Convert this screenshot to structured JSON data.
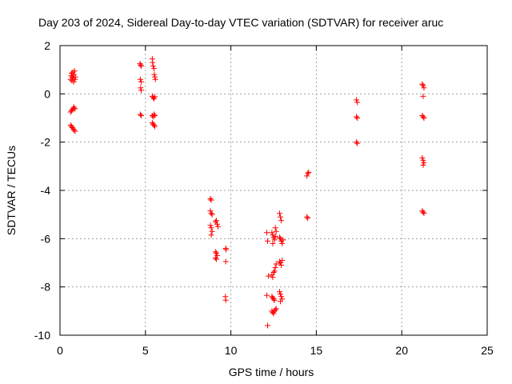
{
  "chart_data": {
    "type": "scatter",
    "title": "Day 203 of 2024, Sidereal Day-to-day VTEC variation (SDTVAR) for receiver aruc",
    "xlabel": "GPS time / hours",
    "ylabel": "SDTVAR / TECUs",
    "xlim": [
      0,
      25
    ],
    "ylim": [
      -10,
      2
    ],
    "xticks": [
      0,
      5,
      10,
      15,
      20,
      25
    ],
    "yticks": [
      -10,
      -8,
      -6,
      -4,
      -2,
      0,
      2
    ],
    "grid": true,
    "marker": "+",
    "color": "#ff0000",
    "series": [
      {
        "name": "SDTVAR",
        "points": [
          [
            0.62,
            0.6
          ],
          [
            0.65,
            0.75
          ],
          [
            0.68,
            0.85
          ],
          [
            0.7,
            0.55
          ],
          [
            0.72,
            0.7
          ],
          [
            0.75,
            0.9
          ],
          [
            0.78,
            0.65
          ],
          [
            0.8,
            0.5
          ],
          [
            0.82,
            0.8
          ],
          [
            0.85,
            0.95
          ],
          [
            0.88,
            0.6
          ],
          [
            0.9,
            0.7
          ],
          [
            0.62,
            -0.75
          ],
          [
            0.68,
            -0.7
          ],
          [
            0.72,
            -0.65
          ],
          [
            0.78,
            -0.6
          ],
          [
            0.82,
            -0.55
          ],
          [
            0.88,
            -0.62
          ],
          [
            0.62,
            -1.3
          ],
          [
            0.68,
            -1.35
          ],
          [
            0.72,
            -1.4
          ],
          [
            0.78,
            -1.45
          ],
          [
            0.82,
            -1.5
          ],
          [
            0.88,
            -1.55
          ],
          [
            4.68,
            1.25
          ],
          [
            4.72,
            1.2
          ],
          [
            4.75,
            1.15
          ],
          [
            4.7,
            0.6
          ],
          [
            4.75,
            0.5
          ],
          [
            4.72,
            0.25
          ],
          [
            4.75,
            0.15
          ],
          [
            4.7,
            -0.85
          ],
          [
            4.75,
            -0.9
          ],
          [
            5.4,
            1.45
          ],
          [
            5.42,
            1.3
          ],
          [
            5.45,
            1.15
          ],
          [
            5.5,
            1.05
          ],
          [
            5.52,
            0.8
          ],
          [
            5.55,
            0.7
          ],
          [
            5.58,
            0.6
          ],
          [
            5.4,
            -0.1
          ],
          [
            5.45,
            -0.15
          ],
          [
            5.5,
            -0.2
          ],
          [
            5.55,
            -0.12
          ],
          [
            5.4,
            -0.9
          ],
          [
            5.45,
            -0.95
          ],
          [
            5.5,
            -0.85
          ],
          [
            5.55,
            -0.9
          ],
          [
            5.4,
            -1.2
          ],
          [
            5.45,
            -1.25
          ],
          [
            5.5,
            -1.3
          ],
          [
            5.55,
            -1.35
          ],
          [
            8.8,
            -4.35
          ],
          [
            8.85,
            -4.4
          ],
          [
            8.8,
            -4.85
          ],
          [
            8.85,
            -4.95
          ],
          [
            8.9,
            -5.0
          ],
          [
            8.8,
            -5.45
          ],
          [
            8.85,
            -5.55
          ],
          [
            8.9,
            -5.7
          ],
          [
            8.85,
            -5.85
          ],
          [
            9.1,
            -5.3
          ],
          [
            9.15,
            -5.25
          ],
          [
            9.2,
            -5.4
          ],
          [
            9.25,
            -5.5
          ],
          [
            9.1,
            -6.55
          ],
          [
            9.15,
            -6.6
          ],
          [
            9.2,
            -6.7
          ],
          [
            9.1,
            -6.8
          ],
          [
            9.15,
            -6.85
          ],
          [
            9.7,
            -6.4
          ],
          [
            9.72,
            -6.45
          ],
          [
            9.7,
            -6.95
          ],
          [
            9.68,
            -8.4
          ],
          [
            9.7,
            -8.55
          ],
          [
            12.1,
            -5.75
          ],
          [
            12.15,
            -6.1
          ],
          [
            12.2,
            -7.55
          ],
          [
            12.1,
            -8.35
          ],
          [
            12.15,
            -9.6
          ],
          [
            12.4,
            -5.75
          ],
          [
            12.45,
            -5.85
          ],
          [
            12.5,
            -5.95
          ],
          [
            12.55,
            -6.05
          ],
          [
            12.45,
            -6.2
          ],
          [
            12.6,
            -5.55
          ],
          [
            12.65,
            -5.7
          ],
          [
            12.6,
            -5.9
          ],
          [
            12.4,
            -7.5
          ],
          [
            12.45,
            -7.6
          ],
          [
            12.5,
            -7.4
          ],
          [
            12.55,
            -7.35
          ],
          [
            12.6,
            -7.2
          ],
          [
            12.65,
            -7.05
          ],
          [
            12.4,
            -8.4
          ],
          [
            12.45,
            -8.45
          ],
          [
            12.5,
            -8.5
          ],
          [
            12.55,
            -8.55
          ],
          [
            12.4,
            -9.0
          ],
          [
            12.45,
            -9.05
          ],
          [
            12.5,
            -9.1
          ],
          [
            12.55,
            -9.0
          ],
          [
            12.6,
            -8.95
          ],
          [
            12.65,
            -8.9
          ],
          [
            12.85,
            -4.95
          ],
          [
            12.9,
            -5.1
          ],
          [
            12.95,
            -5.25
          ],
          [
            12.85,
            -5.95
          ],
          [
            12.9,
            -6.0
          ],
          [
            12.95,
            -6.1
          ],
          [
            13.0,
            -6.2
          ],
          [
            13.05,
            -6.05
          ],
          [
            12.85,
            -6.95
          ],
          [
            12.9,
            -7.0
          ],
          [
            12.95,
            -7.1
          ],
          [
            13.0,
            -6.9
          ],
          [
            12.85,
            -8.2
          ],
          [
            12.9,
            -8.3
          ],
          [
            12.95,
            -8.4
          ],
          [
            13.0,
            -8.5
          ],
          [
            12.9,
            -8.6
          ],
          [
            14.45,
            -3.4
          ],
          [
            14.5,
            -3.3
          ],
          [
            14.55,
            -3.25
          ],
          [
            14.45,
            -5.1
          ],
          [
            14.5,
            -5.15
          ],
          [
            17.35,
            -0.25
          ],
          [
            17.4,
            -0.35
          ],
          [
            17.35,
            -0.95
          ],
          [
            17.4,
            -1.0
          ],
          [
            17.35,
            -2.0
          ],
          [
            17.4,
            -2.05
          ],
          [
            21.2,
            0.4
          ],
          [
            21.25,
            0.35
          ],
          [
            21.3,
            0.25
          ],
          [
            21.25,
            -0.1
          ],
          [
            21.2,
            -0.9
          ],
          [
            21.25,
            -0.95
          ],
          [
            21.3,
            -1.0
          ],
          [
            21.2,
            -2.65
          ],
          [
            21.25,
            -2.75
          ],
          [
            21.3,
            -2.85
          ],
          [
            21.25,
            -2.95
          ],
          [
            21.2,
            -4.85
          ],
          [
            21.25,
            -4.9
          ],
          [
            21.3,
            -4.95
          ]
        ]
      }
    ]
  }
}
